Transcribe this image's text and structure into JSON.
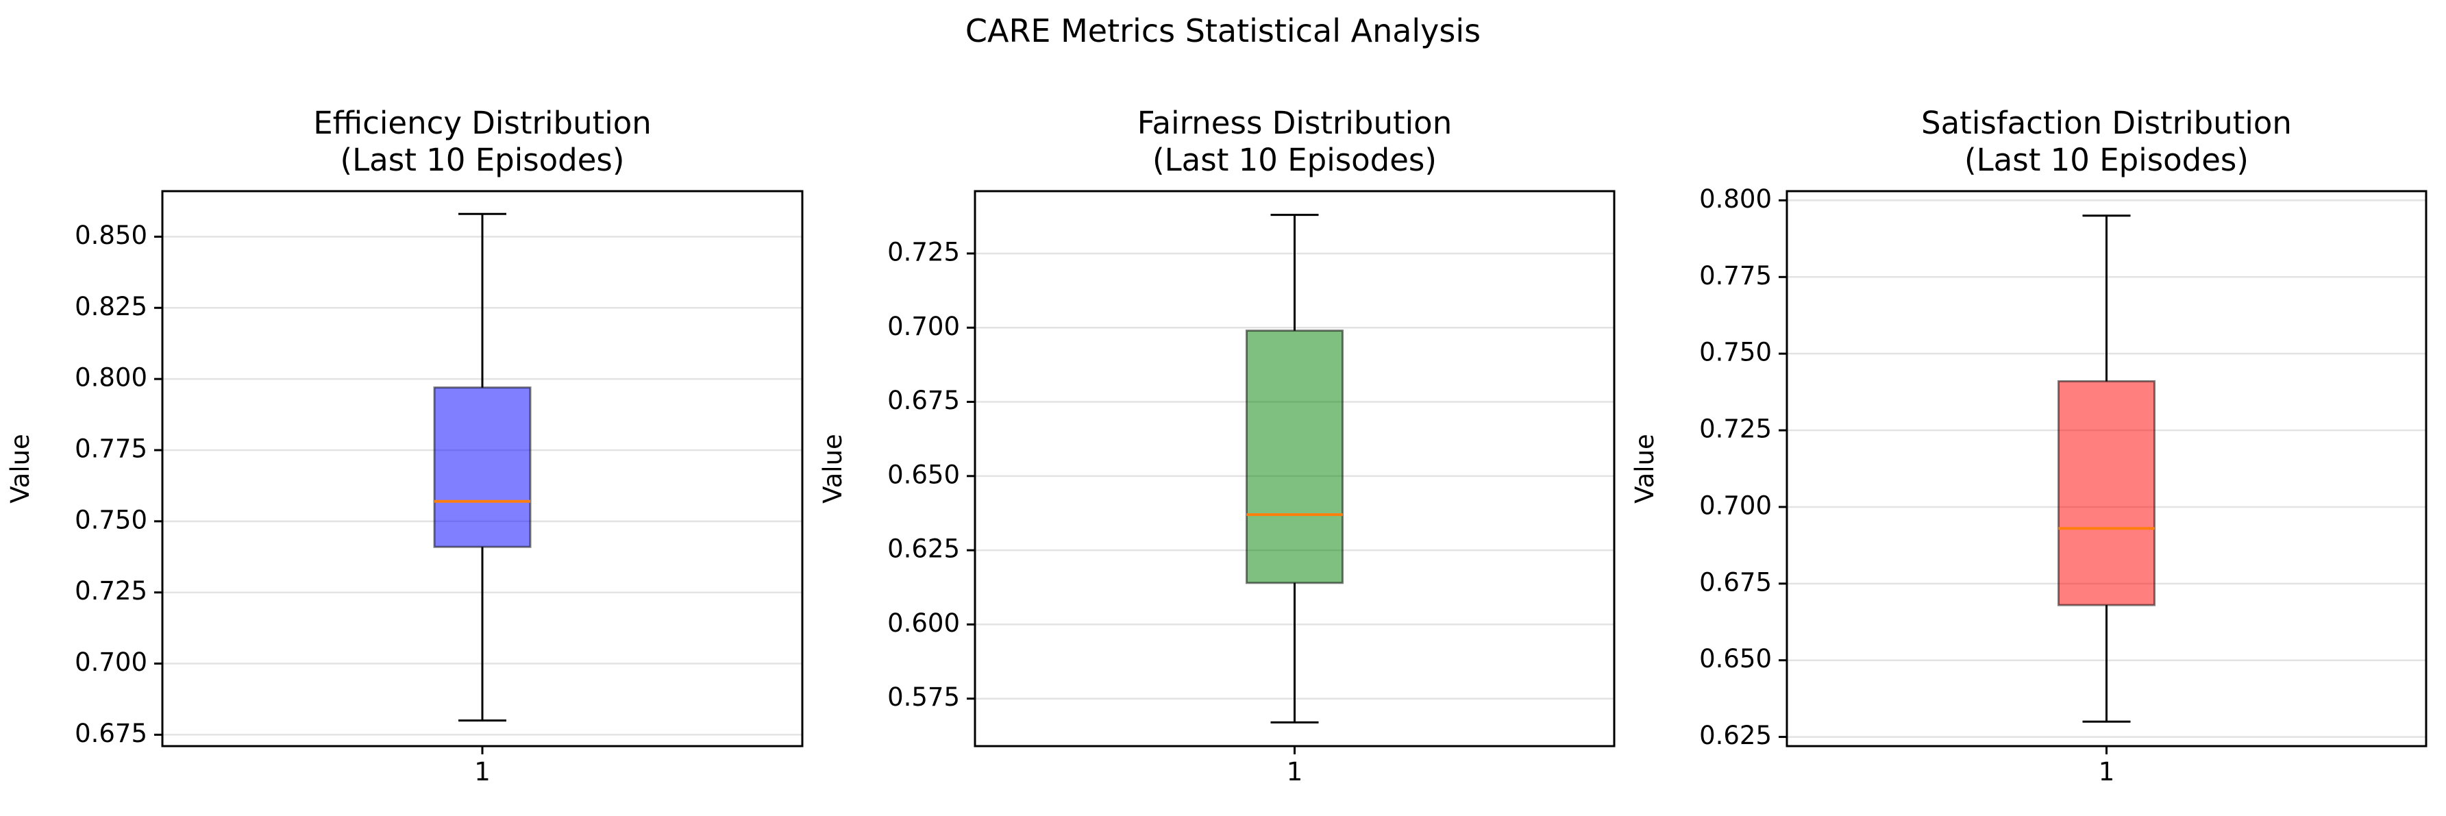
{
  "figure": {
    "suptitle": "CARE Metrics Statistical Analysis"
  },
  "chart_data": [
    {
      "type": "box",
      "title": "Efficiency Distribution\n(Last 10 Episodes)",
      "xlabel": "",
      "ylabel": "Value",
      "categories": [
        "1"
      ],
      "ylim": [
        0.671,
        0.866
      ],
      "yticks": [
        0.675,
        0.7,
        0.725,
        0.75,
        0.775,
        0.8,
        0.825,
        0.85
      ],
      "tick_labels": [
        "0.675",
        "0.700",
        "0.725",
        "0.750",
        "0.775",
        "0.800",
        "0.825",
        "0.850"
      ],
      "grid": true,
      "box_color": "#0000ff",
      "median_color": "#ff7f0e",
      "box": {
        "whislo": 0.68,
        "q1": 0.741,
        "med": 0.757,
        "q3": 0.797,
        "whishi": 0.858
      }
    },
    {
      "type": "box",
      "title": "Fairness Distribution\n(Last 10 Episodes)",
      "xlabel": "",
      "ylabel": "Value",
      "categories": [
        "1"
      ],
      "ylim": [
        0.559,
        0.746
      ],
      "yticks": [
        0.575,
        0.6,
        0.625,
        0.65,
        0.675,
        0.7,
        0.725
      ],
      "tick_labels": [
        "0.575",
        "0.600",
        "0.625",
        "0.650",
        "0.675",
        "0.700",
        "0.725"
      ],
      "grid": true,
      "box_color": "#008000",
      "median_color": "#ff7f0e",
      "box": {
        "whislo": 0.567,
        "q1": 0.614,
        "med": 0.637,
        "q3": 0.699,
        "whishi": 0.738
      }
    },
    {
      "type": "box",
      "title": "Satisfaction Distribution\n(Last 10 Episodes)",
      "xlabel": "",
      "ylabel": "Value",
      "categories": [
        "1"
      ],
      "ylim": [
        0.622,
        0.803
      ],
      "yticks": [
        0.625,
        0.65,
        0.675,
        0.7,
        0.725,
        0.75,
        0.775,
        0.8
      ],
      "tick_labels": [
        "0.625",
        "0.650",
        "0.675",
        "0.700",
        "0.725",
        "0.750",
        "0.775",
        "0.800"
      ],
      "grid": true,
      "box_color": "#ff0000",
      "median_color": "#ff7f0e",
      "box": {
        "whislo": 0.63,
        "q1": 0.668,
        "med": 0.693,
        "q3": 0.741,
        "whishi": 0.795
      }
    }
  ]
}
